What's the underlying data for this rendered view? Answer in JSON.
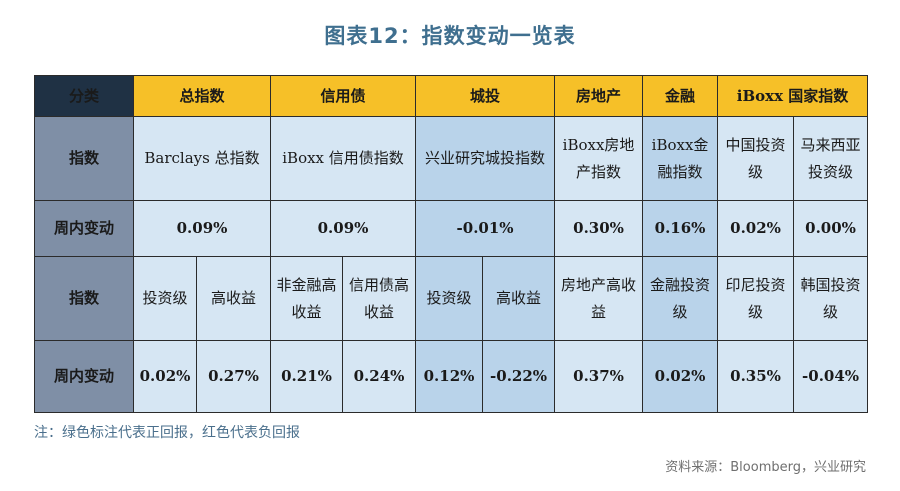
{
  "title": "图表12：指数变动一览表",
  "headers": {
    "category": "分类",
    "total": "总指数",
    "credit": "信用债",
    "urban": "城投",
    "realestate": "房地产",
    "finance": "金融",
    "iboxx_country": "iBoxx 国家指数"
  },
  "row_labels": {
    "index": "指数",
    "weekly_change": "周内变动"
  },
  "row1": {
    "total": "Barclays 总指数",
    "credit": "iBoxx 信用债指数",
    "urban": "兴业研究城投指数",
    "realestate": "iBoxx房地产指数",
    "finance": "iBoxx金融指数",
    "china": "中国投资级",
    "malaysia": "马来西亚投资级"
  },
  "row2": {
    "total": "0.09%",
    "credit": "0.09%",
    "urban": "-0.01%",
    "realestate": "0.30%",
    "finance": "0.16%",
    "china": "0.02%",
    "malaysia": "0.00%"
  },
  "row3": {
    "total_ig": "投资级",
    "total_hy": "高收益",
    "credit_nonfin": "非金融高收益",
    "credit_hy": "信用债高收益",
    "urban_ig": "投资级",
    "urban_hy": "高收益",
    "realestate_hy": "房地产高收益",
    "finance_ig": "金融投资级",
    "indonesia": "印尼投资级",
    "korea": "韩国投资级"
  },
  "row4": {
    "total_ig": "0.02%",
    "total_hy": "0.27%",
    "credit_nonfin": "0.21%",
    "credit_hy": "0.24%",
    "urban_ig": "0.12%",
    "urban_hy": "-0.22%",
    "realestate_hy": "0.37%",
    "finance_ig": "0.02%",
    "indonesia": "0.35%",
    "korea": "-0.04%"
  },
  "note": "注：绿色标注代表正回报，红色代表负回报",
  "source": "资料来源：Bloomberg，兴业研究",
  "colors": {
    "positive": "#12a84a",
    "negative": "#b01c1c",
    "header": "#f6c028",
    "header_dark": "#1f3144",
    "row_label": "#7f8fa6"
  }
}
